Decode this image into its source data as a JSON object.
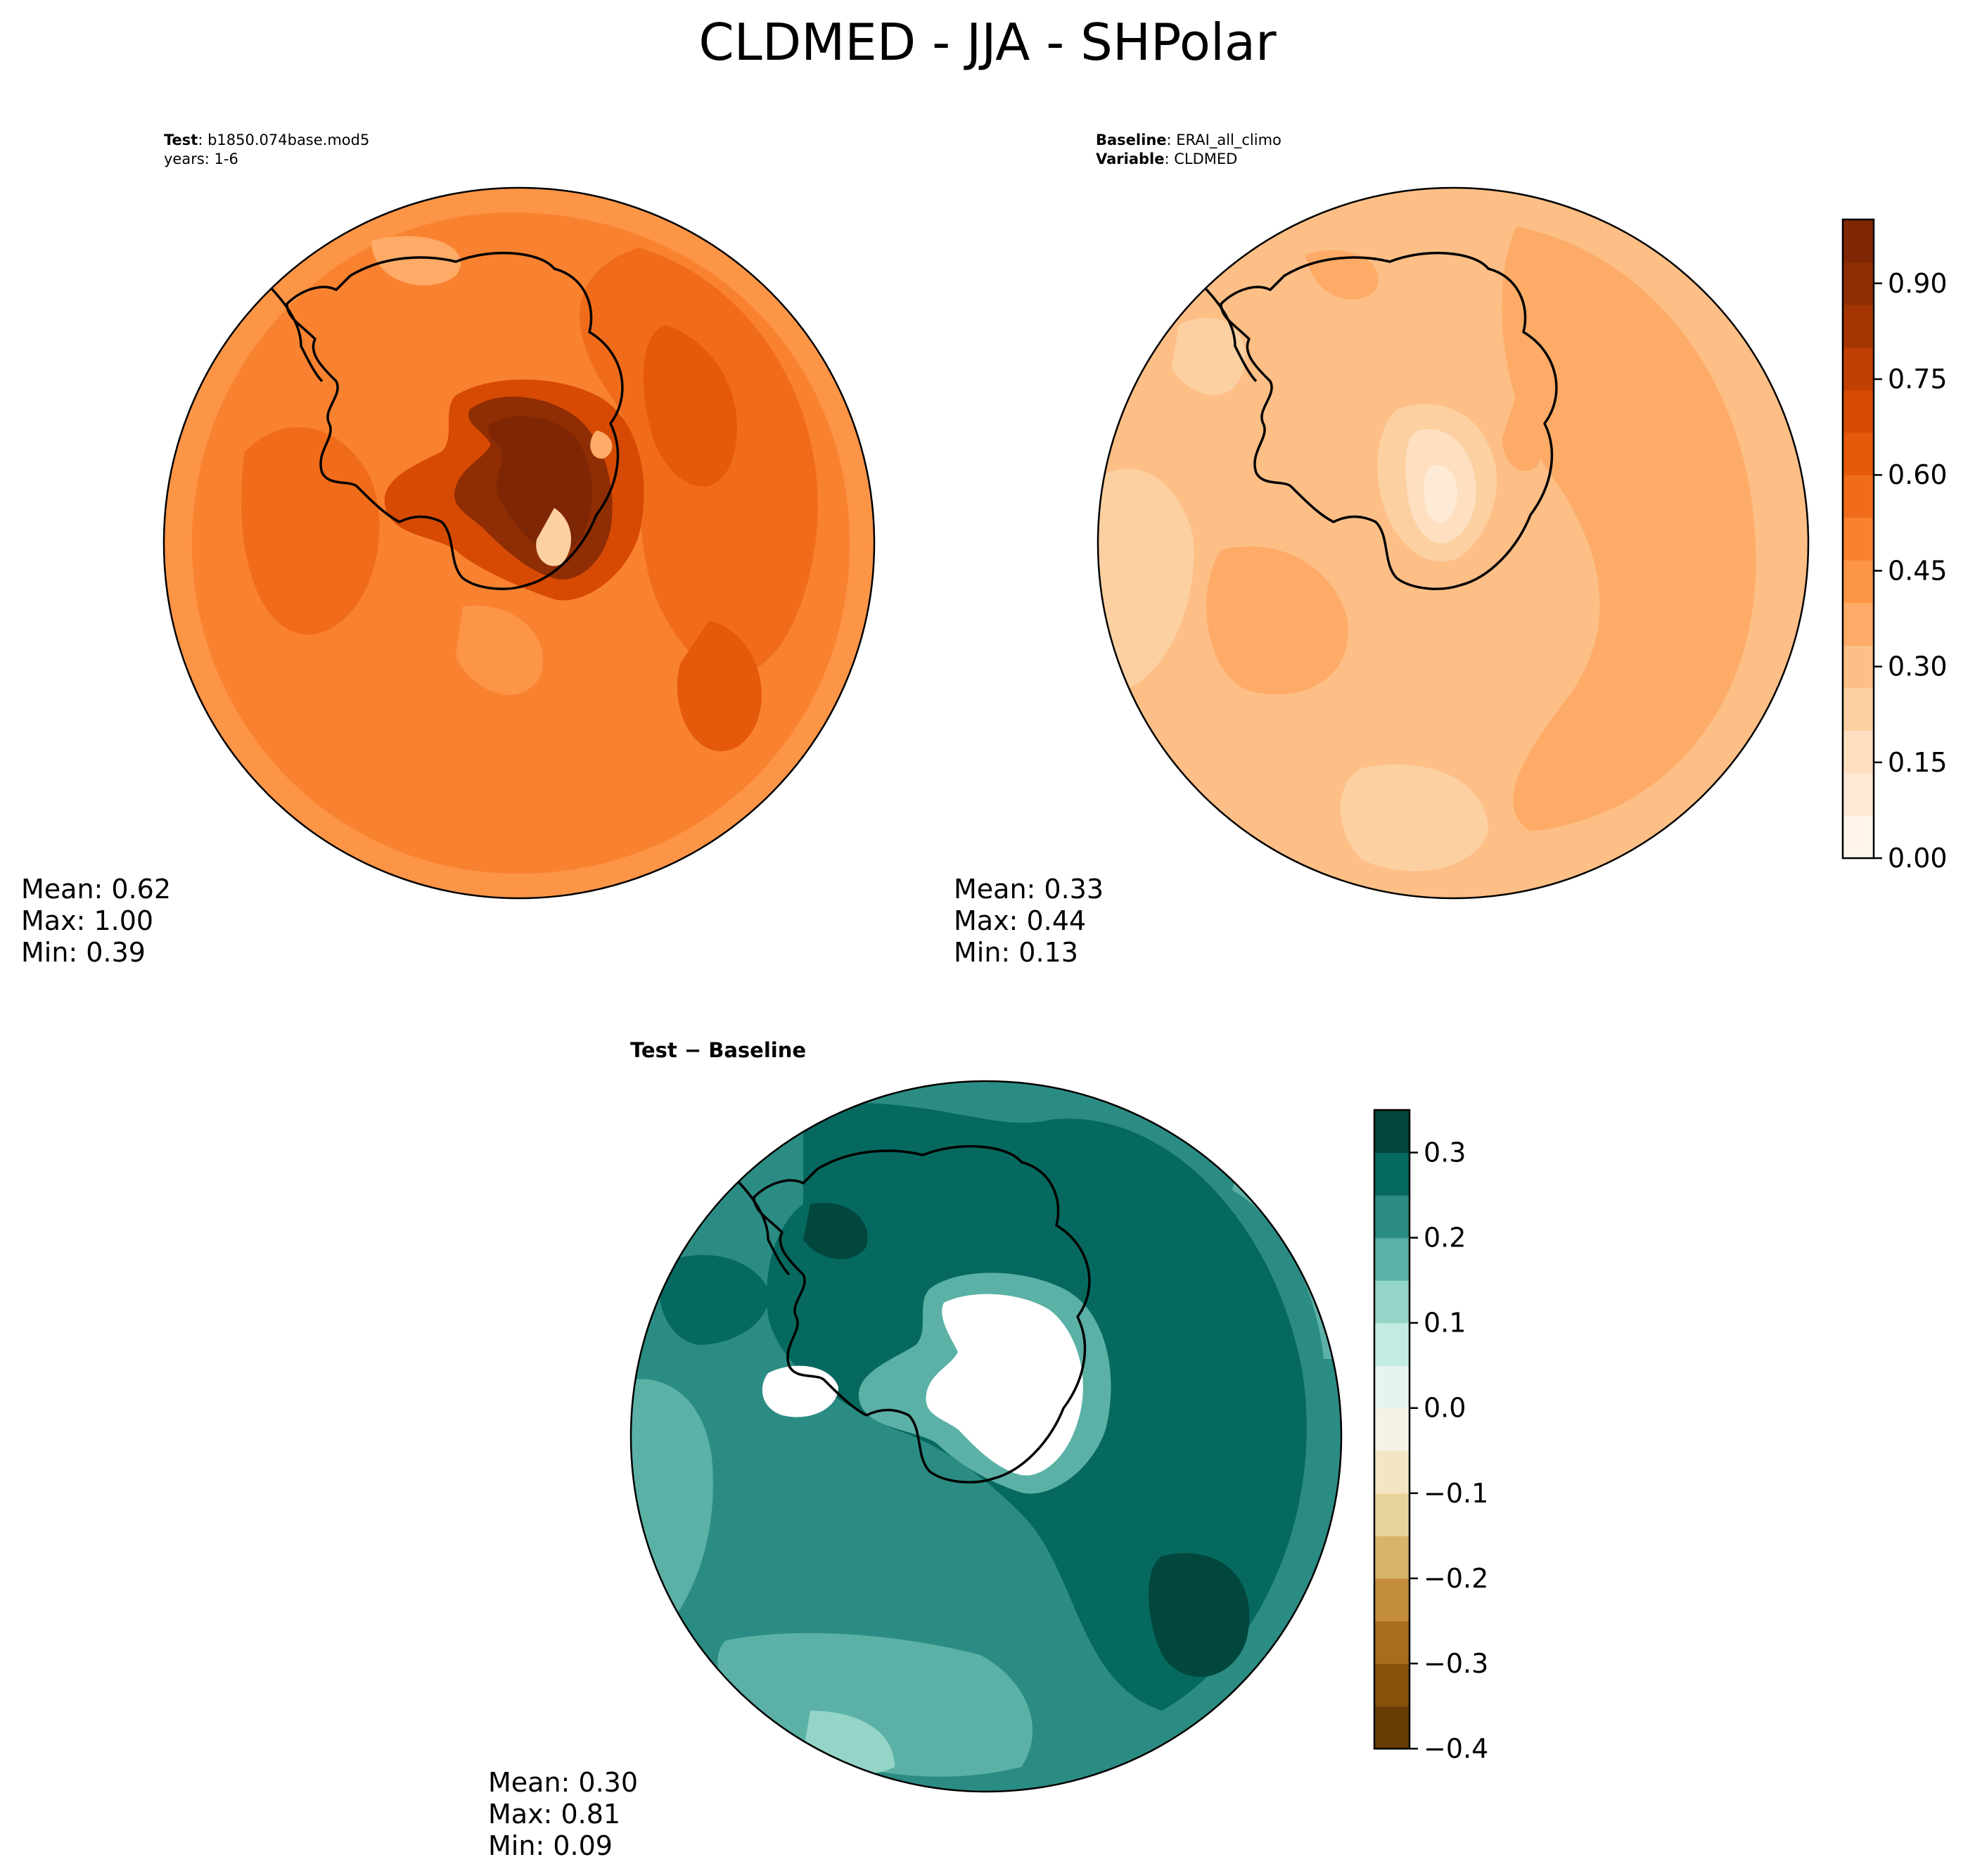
{
  "title": "CLDMED - JJA - SHPolar",
  "panels": {
    "test": {
      "label_bold": "Test",
      "label_value": ": b1850.074base.mod5",
      "line2": "years: 1-6",
      "stats": {
        "mean": "Mean:  0.62",
        "max": "Max:  1.00",
        "min": "Min:  0.39"
      }
    },
    "baseline": {
      "label_bold": "Baseline",
      "label_value": ": ERAI_all_climo",
      "var_bold": "Variable",
      "var_value": ": CLDMED",
      "stats": {
        "mean": "Mean:  0.33",
        "max": "Max:  0.44",
        "min": "Min:  0.13"
      }
    },
    "diff": {
      "title_left": "Test",
      "title_op": " − ",
      "title_right": "Baseline",
      "stats": {
        "mean": "Mean:  0.30",
        "max": "Max:  0.81",
        "min": "Min:  0.09"
      }
    }
  },
  "colorbars": {
    "oranges": {
      "ticks": [
        "0.00",
        "0.15",
        "0.30",
        "0.45",
        "0.60",
        "0.75",
        "0.90"
      ],
      "colors": [
        "#fff5eb",
        "#feebd6",
        "#fee0c1",
        "#fdd0a2",
        "#fdbf86",
        "#fdab67",
        "#fd9547",
        "#f98230",
        "#f16c1a",
        "#e5590a",
        "#d64a03",
        "#c03f03",
        "#a43503",
        "#8f2d04",
        "#7f2704"
      ],
      "levels_max": "1.0"
    },
    "brbg": {
      "ticks": [
        "−0.4",
        "−0.3",
        "−0.2",
        "−0.1",
        "0.0",
        "0.1",
        "0.2",
        "0.3"
      ],
      "colors": [
        "#6a3d06",
        "#87500b",
        "#a86e1f",
        "#c48c3d",
        "#d8b46a",
        "#e8d39c",
        "#f3e6c3",
        "#f5f1e4",
        "#e6f3ef",
        "#c4ebe3",
        "#94d5c8",
        "#5bb1a6",
        "#2b8c83",
        "#06695f",
        "#01473d"
      ]
    }
  },
  "chart_data": [
    {
      "type": "heatmap",
      "title": "Test : b1850.074base.mod5",
      "variable": "CLDMED",
      "season": "JJA",
      "region": "SHPolar",
      "stats": {
        "mean": 0.62,
        "max": 1.0,
        "min": 0.39
      },
      "color_range": [
        0.0,
        1.0
      ]
    },
    {
      "type": "heatmap",
      "title": "Baseline : ERAI_all_climo",
      "variable": "CLDMED",
      "stats": {
        "mean": 0.33,
        "max": 0.44,
        "min": 0.13
      },
      "color_range": [
        0.0,
        1.0
      ]
    },
    {
      "type": "heatmap",
      "title": "Test − Baseline",
      "stats": {
        "mean": 0.3,
        "max": 0.81,
        "min": 0.09
      },
      "color_range": [
        -0.4,
        0.35
      ]
    }
  ]
}
